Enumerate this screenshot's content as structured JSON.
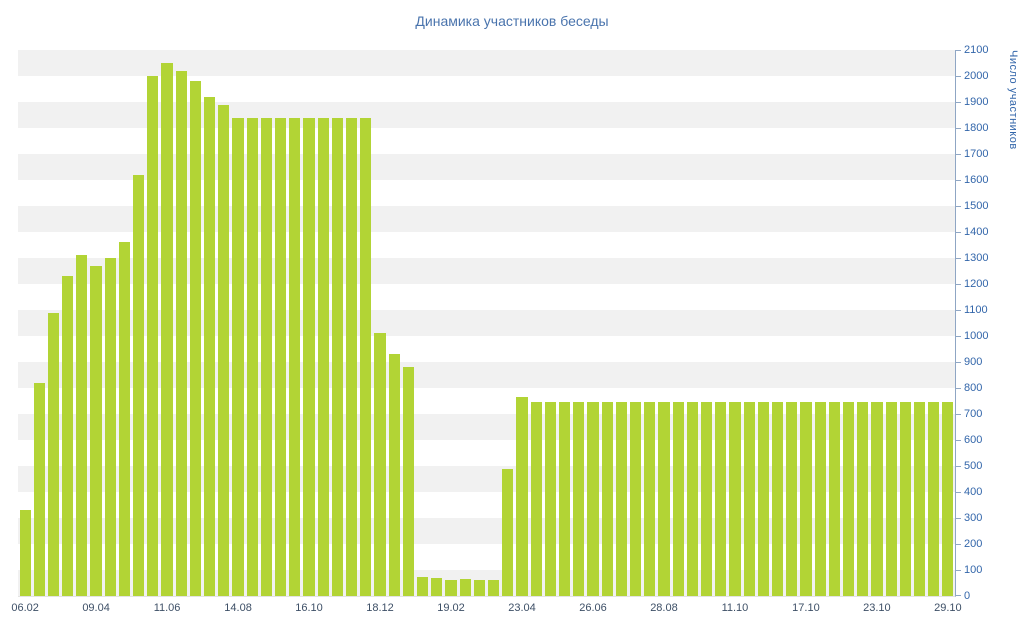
{
  "chart_data": {
    "type": "bar",
    "title": "Динамика участников беседы",
    "ylabel": "Число участников",
    "xlabel": "",
    "ylim": [
      0,
      2100
    ],
    "y_tick_step": 100,
    "y_axis_side": "right",
    "grid": "striped-horizontal-bands",
    "legend": "none",
    "y_tick_labels": [
      "0",
      "100",
      "200",
      "300",
      "400",
      "500",
      "600",
      "700",
      "800",
      "900",
      "1000",
      "1100",
      "1200",
      "1300",
      "1400",
      "1500",
      "1600",
      "1700",
      "1800",
      "1900",
      "2000",
      "2100"
    ],
    "x_tick_labels": [
      "06.02",
      "09.04",
      "11.06",
      "14.08",
      "16.10",
      "18.12",
      "19.02",
      "23.04",
      "26.06",
      "28.08",
      "11.10",
      "17.10",
      "23.10",
      "29.10"
    ],
    "bars_per_x_tick": 5,
    "values": [
      330,
      820,
      1090,
      1230,
      1310,
      1270,
      1300,
      1360,
      1620,
      2000,
      2050,
      2020,
      1980,
      1920,
      1890,
      1840,
      1840,
      1840,
      1840,
      1840,
      1840,
      1840,
      1840,
      1840,
      1840,
      1010,
      930,
      880,
      75,
      70,
      60,
      65,
      60,
      60,
      490,
      765,
      745,
      745,
      745,
      745,
      745,
      745,
      745,
      745,
      745,
      745,
      745,
      745,
      745,
      745,
      745,
      745,
      745,
      745,
      745,
      745,
      745,
      745,
      745,
      745,
      745,
      745,
      745,
      745,
      745,
      745
    ],
    "colors": {
      "bar": "#b2d435",
      "band": "#f1f1f1",
      "title": "#4a74ad",
      "y_labels": "#3366aa",
      "x_labels": "#3d4f66",
      "axis_line": "#8fa6c4"
    }
  }
}
